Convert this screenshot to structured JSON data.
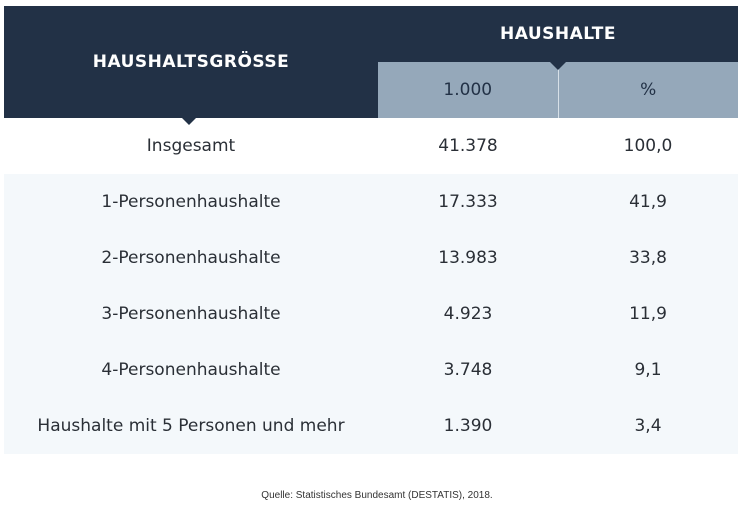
{
  "table": {
    "row_header": "HAUSHALTSGRÖSSE",
    "column_group": "HAUSHALTE",
    "columns": [
      "1.000",
      "%"
    ]
  },
  "chart_data": {
    "type": "table",
    "columns": [
      "HAUSHALTSGRÖSSE",
      "1.000",
      "%"
    ],
    "rows": [
      {
        "label": "Insgesamt",
        "thousands": "41.378",
        "percent": "100,0"
      },
      {
        "label": "1-Personenhaushalte",
        "thousands": "17.333",
        "percent": "41,9"
      },
      {
        "label": "2-Personenhaushalte",
        "thousands": "13.983",
        "percent": "33,8"
      },
      {
        "label": "3-Personenhaushalte",
        "thousands": "4.923",
        "percent": "11,9"
      },
      {
        "label": "4-Personenhaushalte",
        "thousands": "3.748",
        "percent": "9,1"
      },
      {
        "label": "Haushalte mit 5 Personen und mehr",
        "thousands": "1.390",
        "percent": "3,4"
      }
    ]
  },
  "source": "Quelle: Statistisches Bundesamt (DESTATIS), 2018.",
  "colors": {
    "header_dark": "#223146",
    "header_light": "#95a8ba",
    "row_alt": "#f4f8fb"
  }
}
